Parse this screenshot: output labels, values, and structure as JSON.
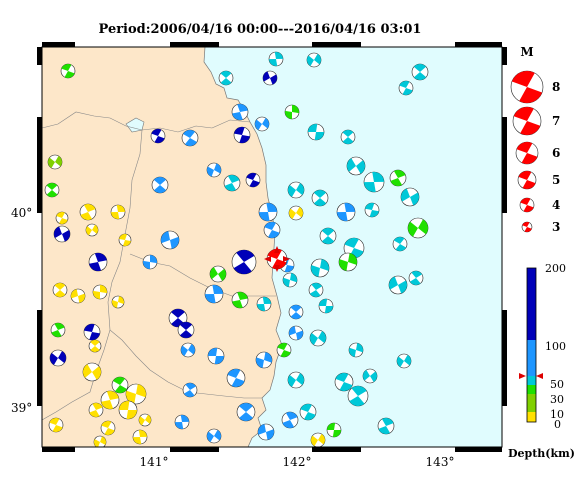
{
  "title": "Period:2006/04/16 00:00---2016/04/16 03:01",
  "map": {
    "lat_ticks": [
      "40°",
      "39°"
    ],
    "lon_ticks": [
      "141°",
      "142°",
      "143°"
    ],
    "land_color": "#fde7c9",
    "sea_color": "#e0fcfe",
    "lon_range": [
      140.3,
      143.35
    ],
    "lat_range": [
      38.85,
      40.85
    ]
  },
  "magnitude_legend": {
    "title": "M",
    "labels": [
      "8",
      "7",
      "6",
      "5",
      "4",
      "3"
    ]
  },
  "depth_legend": {
    "ticks": [
      "200",
      "100",
      "50",
      "30",
      "10",
      "0"
    ],
    "title": "Depth(km)",
    "colors": {
      "0-10": "#ffe000",
      "10-30": "#80d000",
      "30-50": "#20e000",
      "50-100": "#00c8d8",
      "100-150": "#1e96ff",
      "150-200": "#0000b8"
    }
  },
  "main_event_color": "#ff0000"
}
